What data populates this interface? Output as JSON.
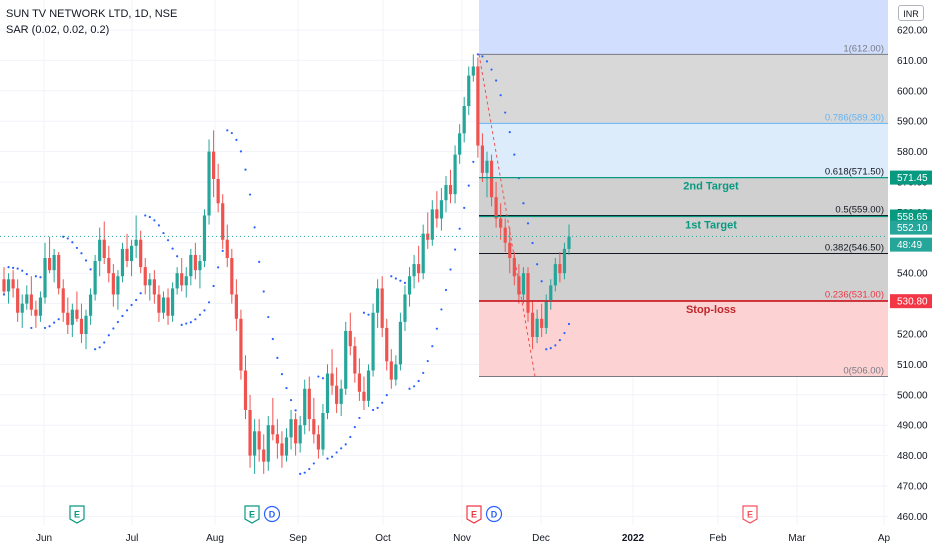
{
  "header": {
    "symbol_line": "SUN TV NETWORK LTD, 1D, NSE",
    "indicator_line": "SAR (0.02, 0.02, 0.2)",
    "currency": "INR"
  },
  "chart_data": {
    "type": "candlestick",
    "ylim": [
      456,
      626
    ],
    "y_ticks": [
      "620.00",
      "610.00",
      "600.00",
      "590.00",
      "580.00",
      "570.00",
      "560.00",
      "550.00",
      "540.00",
      "530.00",
      "520.00",
      "510.00",
      "500.00",
      "490.00",
      "480.00",
      "470.00",
      "460.00"
    ],
    "x_ticks": [
      "Jun",
      "Jul",
      "Aug",
      "Sep",
      "Oct",
      "Nov",
      "Dec",
      "2022",
      "Feb",
      "Mar",
      "Ap"
    ],
    "fib_levels": [
      {
        "ratio": "1",
        "price": 612.0,
        "label": "1(612.00)",
        "color": "#787b86",
        "fill": "#d8d8d8"
      },
      {
        "ratio": "0.786",
        "price": 589.3,
        "label": "0.786(589.30)",
        "color": "#64b5f6",
        "fill": "#dcecfb"
      },
      {
        "ratio": "0.618",
        "price": 571.5,
        "label": "0.618(571.50)",
        "color": "#131722",
        "fill": "#d0d0d0"
      },
      {
        "ratio": "0.5",
        "price": 559.0,
        "label": "0.5(559.00)",
        "color": "#131722",
        "fill": "#d0d0d0"
      },
      {
        "ratio": "0.382",
        "price": 546.5,
        "label": "0.382(546.50)",
        "color": "#131722",
        "fill": "#d0d0d0"
      },
      {
        "ratio": "0.236",
        "price": 531.0,
        "label": "0.236(531.00)",
        "color": "#f23645",
        "fill": "#fcd2d2"
      },
      {
        "ratio": "0",
        "price": 506.0,
        "label": "0(506.00)",
        "color": "#787b86",
        "fill": ""
      }
    ],
    "annotations": [
      {
        "text": "2nd Target",
        "price": 571.45,
        "color": "#089981"
      },
      {
        "text": "1st Target",
        "price": 558.65,
        "color": "#089981"
      },
      {
        "text": "Stop-loss",
        "price": 530.8,
        "color": "#c0272d"
      }
    ],
    "price_tags": [
      {
        "text": "571.45",
        "price": 571.45,
        "bg": "#089981"
      },
      {
        "text": "558.65",
        "price": 558.65,
        "bg": "#089981"
      },
      {
        "text": "552.10",
        "price": 552.1,
        "bg": "#26a69a"
      },
      {
        "text": "48:49",
        "price": 552.1,
        "bg": "#26a69a"
      },
      {
        "text": "530.80",
        "price": 530.8,
        "bg": "#f23645"
      }
    ],
    "current_price": 552.1,
    "candles": [
      [
        538,
        542,
        533,
        534
      ],
      [
        534,
        540,
        530,
        538
      ],
      [
        538,
        541,
        532,
        535
      ],
      [
        535,
        538,
        524,
        527
      ],
      [
        527,
        533,
        522,
        530
      ],
      [
        530,
        536,
        528,
        533
      ],
      [
        533,
        539,
        526,
        528
      ],
      [
        528,
        531,
        522,
        526
      ],
      [
        526,
        534,
        524,
        532
      ],
      [
        532,
        550,
        530,
        545
      ],
      [
        545,
        552,
        540,
        541
      ],
      [
        541,
        548,
        537,
        546
      ],
      [
        546,
        547,
        533,
        535
      ],
      [
        535,
        538,
        524,
        527
      ],
      [
        527,
        532,
        520,
        523
      ],
      [
        523,
        530,
        519,
        528
      ],
      [
        528,
        534,
        524,
        525
      ],
      [
        525,
        530,
        517,
        520
      ],
      [
        520,
        528,
        515,
        526
      ],
      [
        526,
        535,
        523,
        533
      ],
      [
        533,
        546,
        531,
        544
      ],
      [
        544,
        555,
        539,
        551
      ],
      [
        551,
        557,
        543,
        545
      ],
      [
        545,
        549,
        537,
        540
      ],
      [
        540,
        543,
        529,
        533
      ],
      [
        533,
        541,
        528,
        539
      ],
      [
        539,
        550,
        537,
        548
      ],
      [
        548,
        553,
        542,
        544
      ],
      [
        544,
        551,
        539,
        549
      ],
      [
        549,
        559,
        545,
        551
      ],
      [
        551,
        554,
        540,
        542
      ],
      [
        542,
        545,
        533,
        536
      ],
      [
        536,
        540,
        531,
        538
      ],
      [
        538,
        541,
        530,
        533
      ],
      [
        533,
        536,
        524,
        527
      ],
      [
        527,
        534,
        525,
        532
      ],
      [
        532,
        535,
        523,
        526
      ],
      [
        526,
        537,
        524,
        535
      ],
      [
        535,
        542,
        533,
        540
      ],
      [
        540,
        545,
        534,
        536
      ],
      [
        536,
        542,
        532,
        539
      ],
      [
        539,
        548,
        536,
        546
      ],
      [
        546,
        550,
        538,
        541
      ],
      [
        541,
        546,
        535,
        544
      ],
      [
        544,
        561,
        542,
        559
      ],
      [
        559,
        584,
        556,
        580
      ],
      [
        580,
        587,
        565,
        571
      ],
      [
        571,
        576,
        560,
        563
      ],
      [
        563,
        566,
        548,
        551
      ],
      [
        551,
        556,
        542,
        545
      ],
      [
        545,
        548,
        530,
        533
      ],
      [
        533,
        538,
        521,
        525
      ],
      [
        525,
        528,
        505,
        508
      ],
      [
        508,
        513,
        492,
        495
      ],
      [
        495,
        500,
        476,
        480
      ],
      [
        480,
        492,
        474,
        488
      ],
      [
        488,
        492,
        478,
        482
      ],
      [
        482,
        487,
        474,
        478
      ],
      [
        478,
        493,
        475,
        490
      ],
      [
        490,
        499,
        485,
        487
      ],
      [
        487,
        492,
        479,
        484
      ],
      [
        484,
        488,
        476,
        480
      ],
      [
        480,
        489,
        478,
        486
      ],
      [
        486,
        495,
        482,
        492
      ],
      [
        492,
        494,
        480,
        484
      ],
      [
        484,
        493,
        481,
        490
      ],
      [
        490,
        505,
        487,
        502
      ],
      [
        502,
        506,
        488,
        492
      ],
      [
        492,
        499,
        484,
        487
      ],
      [
        487,
        490,
        479,
        482
      ],
      [
        482,
        497,
        480,
        494
      ],
      [
        494,
        510,
        492,
        507
      ],
      [
        507,
        515,
        500,
        503
      ],
      [
        503,
        509,
        494,
        497
      ],
      [
        497,
        505,
        493,
        502
      ],
      [
        502,
        524,
        500,
        521
      ],
      [
        521,
        527,
        513,
        516
      ],
      [
        516,
        519,
        504,
        507
      ],
      [
        507,
        512,
        498,
        501
      ],
      [
        501,
        506,
        495,
        498
      ],
      [
        498,
        510,
        496,
        508
      ],
      [
        508,
        530,
        506,
        527
      ],
      [
        527,
        538,
        522,
        535
      ],
      [
        535,
        539,
        519,
        522
      ],
      [
        522,
        525,
        508,
        511
      ],
      [
        511,
        515,
        502,
        505
      ],
      [
        505,
        513,
        503,
        510
      ],
      [
        510,
        527,
        508,
        524
      ],
      [
        524,
        536,
        521,
        533
      ],
      [
        533,
        542,
        529,
        539
      ],
      [
        539,
        546,
        535,
        543
      ],
      [
        543,
        549,
        537,
        540
      ],
      [
        540,
        556,
        538,
        553
      ],
      [
        553,
        560,
        548,
        551
      ],
      [
        551,
        564,
        549,
        561
      ],
      [
        561,
        567,
        555,
        558
      ],
      [
        558,
        568,
        554,
        564
      ],
      [
        564,
        572,
        560,
        569
      ],
      [
        569,
        574,
        563,
        566
      ],
      [
        566,
        582,
        563,
        579
      ],
      [
        579,
        589,
        576,
        586
      ],
      [
        586,
        598,
        583,
        595
      ],
      [
        595,
        608,
        592,
        605
      ],
      [
        605,
        612,
        603,
        608
      ],
      [
        608,
        611,
        578,
        582
      ],
      [
        582,
        586,
        570,
        573
      ],
      [
        573,
        580,
        565,
        577
      ],
      [
        577,
        579,
        562,
        565
      ],
      [
        565,
        570,
        555,
        558
      ],
      [
        558,
        563,
        551,
        555
      ],
      [
        555,
        558,
        547,
        550
      ],
      [
        550,
        555,
        540,
        545
      ],
      [
        545,
        547,
        536,
        539
      ],
      [
        539,
        543,
        530,
        533
      ],
      [
        533,
        542,
        530,
        540
      ],
      [
        540,
        542,
        524,
        527
      ],
      [
        527,
        531,
        515,
        519
      ],
      [
        519,
        528,
        517,
        525
      ],
      [
        525,
        530,
        519,
        522
      ],
      [
        522,
        533,
        520,
        531
      ],
      [
        531,
        538,
        528,
        536
      ],
      [
        536,
        545,
        534,
        543
      ],
      [
        543,
        547,
        537,
        540
      ],
      [
        540,
        550,
        538,
        548
      ],
      [
        548,
        556,
        546,
        552
      ]
    ]
  },
  "events": [
    {
      "type": "earnings",
      "label": "E",
      "color": "#089981",
      "x_pos": "early-jun"
    },
    {
      "type": "earnings",
      "label": "E",
      "color": "#089981",
      "x_pos": "mid-aug"
    },
    {
      "type": "dividend",
      "label": "D",
      "color": "#2962ff",
      "x_pos": "mid-aug"
    },
    {
      "type": "earnings",
      "label": "E",
      "color": "#f23645",
      "x_pos": "nov"
    },
    {
      "type": "dividend",
      "label": "D",
      "color": "#2962ff",
      "x_pos": "nov"
    },
    {
      "type": "earnings",
      "label": "E",
      "color": "#f7525f",
      "x_pos": "feb"
    }
  ],
  "colors": {
    "up": "#26a69a",
    "down": "#ef5350",
    "sar": "#2962ff",
    "grid": "#f0f3fa",
    "axis_text": "#131722",
    "dashed_price": "#26a69a"
  }
}
